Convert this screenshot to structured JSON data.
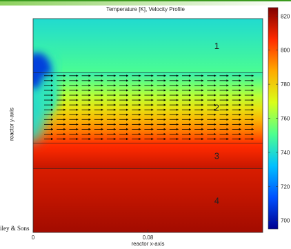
{
  "colors": {
    "top_bar": "#3a9a1e",
    "top_gradient_start": "#8dd15e",
    "top_gradient_end": "#ffffff",
    "colormap": [
      "#00008f",
      "#0050ff",
      "#00c0ff",
      "#4dff8f",
      "#d9ff1a",
      "#ffaa00",
      "#ff2a00",
      "#800000"
    ],
    "arrow": "#000000",
    "region_line": "#222222"
  },
  "credit_text": "iley & Sons",
  "chart_data": {
    "type": "heatmap",
    "title": "Temperature [K], Velocity Profile",
    "xlabel": "reactor x-axis",
    "ylabel": "reactor y-axis",
    "x_ticks": [
      {
        "value": 0,
        "label": "0"
      },
      {
        "value": 0.08,
        "label": "0.08"
      }
    ],
    "xlim": [
      0,
      0.16
    ],
    "colorbar": {
      "label": "Temperature [K]",
      "range": [
        695,
        825
      ],
      "ticks": [
        700,
        720,
        740,
        760,
        780,
        800,
        820
      ],
      "tick_labels": [
        "700",
        "720",
        "740",
        "760",
        "780",
        "800",
        "820"
      ]
    },
    "regions": [
      {
        "label": "1",
        "y_range": [
          0.75,
          1.0
        ],
        "temperature_range": [
          740,
          750
        ]
      },
      {
        "label": "2",
        "y_range": [
          0.42,
          0.75
        ],
        "temperature_range": [
          745,
          805
        ]
      },
      {
        "label": "3",
        "y_range": [
          0.3,
          0.42
        ],
        "temperature_range": [
          805,
          815
        ]
      },
      {
        "label": "4",
        "y_range": [
          0.0,
          0.3
        ],
        "temperature_range": [
          812,
          820
        ]
      }
    ],
    "velocity_field": {
      "region": "2",
      "direction": "+x",
      "rows": 14,
      "columns": 17
    },
    "grid": false,
    "legend": "colorbar-right"
  }
}
